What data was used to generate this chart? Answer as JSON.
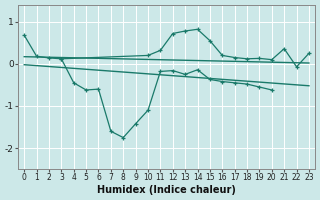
{
  "xlabel": "Humidex (Indice chaleur)",
  "bg_color": "#cce8e8",
  "grid_color": "#f0f0f0",
  "line_color": "#1a7a6a",
  "xlim": [
    -0.5,
    23.5
  ],
  "ylim": [
    -2.5,
    1.4
  ],
  "yticks": [
    -2,
    -1,
    0,
    1
  ],
  "xticks": [
    0,
    1,
    2,
    3,
    4,
    5,
    6,
    7,
    8,
    9,
    10,
    11,
    12,
    13,
    14,
    15,
    16,
    17,
    18,
    19,
    20,
    21,
    22,
    23
  ],
  "series1_x": [
    0,
    1,
    2,
    3,
    10,
    11,
    12,
    13,
    14,
    15,
    16,
    17,
    18,
    19,
    20,
    21,
    22,
    23
  ],
  "series1_y": [
    0.68,
    0.18,
    0.14,
    0.12,
    0.2,
    0.32,
    0.72,
    0.78,
    0.82,
    0.55,
    0.2,
    0.15,
    0.12,
    0.13,
    0.1,
    0.36,
    -0.07,
    0.25
  ],
  "series2_x": [
    3,
    4,
    5,
    6,
    7,
    8,
    9,
    10,
    11,
    12,
    13,
    14,
    15,
    16,
    17,
    18,
    19,
    20
  ],
  "series2_y": [
    0.12,
    -0.45,
    -0.62,
    -0.6,
    -1.6,
    -1.75,
    -1.42,
    -1.1,
    -0.18,
    -0.16,
    -0.25,
    -0.14,
    -0.37,
    -0.42,
    -0.45,
    -0.48,
    -0.55,
    -0.62
  ],
  "trend1_x": [
    0,
    23
  ],
  "trend1_y": [
    0.17,
    0.02
  ],
  "trend2_x": [
    0,
    23
  ],
  "trend2_y": [
    -0.02,
    -0.52
  ]
}
